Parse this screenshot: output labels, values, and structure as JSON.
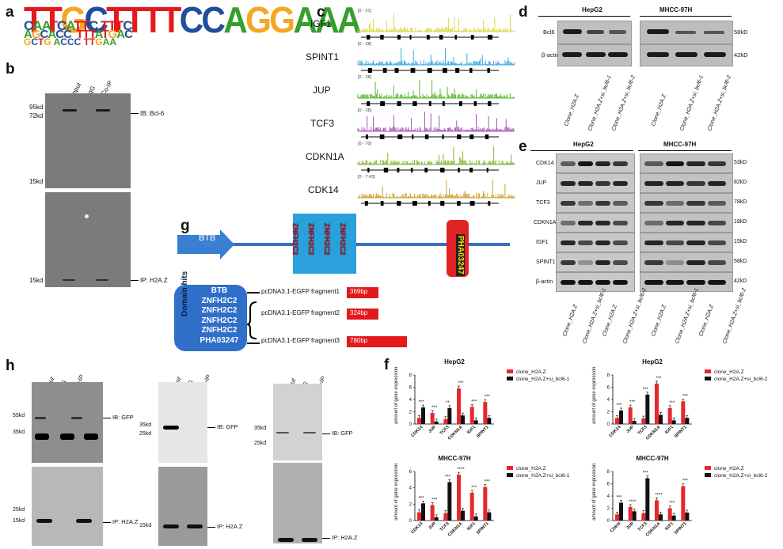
{
  "panels": {
    "a": "a",
    "b": "b",
    "c": "c",
    "d": "d",
    "e": "e",
    "f": "f",
    "g": "g",
    "h": "h"
  },
  "motif": {
    "top": "TTGCTTTTCCAGGAAA",
    "row2": "CAATCATTC TTTC",
    "row3": "AGCACC  TTTATGAC",
    "row4": "GCTG ACCC TTGAA",
    "colors": {
      "T": "#e31a1c",
      "C": "#1f4e9c",
      "A": "#33a02c",
      "G": "#f5a623"
    }
  },
  "panel_b": {
    "lanes": [
      "input",
      "IgG",
      "Co-IP"
    ],
    "markers_top": [
      "95kd",
      "72kd",
      "15kd"
    ],
    "markers_bottom": [
      "15kd"
    ],
    "ib_label": "IB: Bcl-6",
    "ip_label": "IP: H2A.Z"
  },
  "panel_c": {
    "tracks": [
      {
        "gene": "IGF1",
        "range": "[0 - 21]",
        "color": "#d9d94a"
      },
      {
        "gene": "SPINT1",
        "range": "[0 - 28]",
        "color": "#3fa9e0"
      },
      {
        "gene": "JUP",
        "range": "[0 - 28]",
        "color": "#5cb83a"
      },
      {
        "gene": "TCF3",
        "range": "[0 - 28]",
        "color": "#a259b5"
      },
      {
        "gene": "CDKN1A",
        "range": "[0 - 70]",
        "color": "#8cb43a"
      },
      {
        "gene": "CDK14",
        "range": "[0 - 7.43]",
        "color": "#c9a227"
      }
    ]
  },
  "panel_d": {
    "cell_lines": [
      "HepG2",
      "MHCC-97H"
    ],
    "rows": [
      "Bcl6",
      "β-actin"
    ],
    "sizes": [
      "58kD",
      "42kD"
    ],
    "lanes": [
      "Clone_H2A.Z",
      "Clone_H2A.Z+si_bcl6-1",
      "Clone_H2A.Z+si_bcl6-2"
    ]
  },
  "panel_e": {
    "cell_lines": [
      "HepG2",
      "MHCC-97H"
    ],
    "rows": [
      "CDK14",
      "JUP",
      "TCF3",
      "CDKN1A",
      "IGF1",
      "SPINT1",
      "β-actin"
    ],
    "sizes": [
      "53kD",
      "82kD",
      "78kD",
      "18kD",
      "15kD",
      "58kD",
      "42kD"
    ],
    "lanes": [
      "Clone_H2A.Z",
      "Clone_H2A.Z+si_bcl6-1",
      "Clone_H2A.Z",
      "Clone_H2A.Z+si_bcl6-2"
    ]
  },
  "panel_g": {
    "btb": "BTB",
    "znf": [
      "ZNFH2C2",
      "ZNFH2C2",
      "ZNFH2C2",
      "ZNFH2C2"
    ],
    "pha": "PHA03247",
    "domain_box_title": "Domain hits",
    "domain_items": [
      "BTB",
      "ZNFH2C2",
      "ZNFH2C2",
      "ZNFH2C2",
      "ZNFH2C2",
      "PHA03247"
    ],
    "fragments": [
      {
        "name": "pcDNA3.1-EGFP fragment1",
        "size": "369bp"
      },
      {
        "name": "pcDNA3.1-EGFP fragment2",
        "size": "324bp"
      },
      {
        "name": "pcDNA3.1-EGFP fragment3",
        "size": "780bp"
      }
    ]
  },
  "panel_h": {
    "lanes": [
      "input",
      "IgG",
      "Co-IP"
    ],
    "m1": [
      "55kd",
      "35kd",
      "25kd",
      "15kd"
    ],
    "m2": [
      "35kd",
      "25kd",
      "15kd"
    ],
    "m3": [
      "35kd",
      "25kd"
    ],
    "ib": "IB: GFP",
    "ip": "IP: H2A.Z"
  },
  "chart_data": [
    {
      "type": "bar",
      "title": "HepG2",
      "ylabel": "amount of gene expression",
      "categories": [
        "CDK14",
        "JUP",
        "TCF3",
        "CDKN1A",
        "IGF1",
        "SPINT1"
      ],
      "ylim": [
        0,
        8
      ],
      "yticks": [
        "0",
        "2",
        "4",
        "6",
        "8"
      ],
      "series": [
        {
          "name": "clone_H2A.Z",
          "values": [
            1.0,
            1.8,
            0.8,
            5.8,
            2.8,
            3.6
          ],
          "color": "#e8272c"
        },
        {
          "name": "clone_H2A.Z+si_bcl6-1",
          "values": [
            2.7,
            0.4,
            2.6,
            1.4,
            0.6,
            1.0
          ],
          "color": "#111111"
        }
      ],
      "annotations": [
        "***",
        "***",
        "**",
        "***",
        "***",
        "***"
      ]
    },
    {
      "type": "bar",
      "title": "HepG2",
      "ylabel": "amount of gene expression",
      "categories": [
        "CDK14",
        "JUP",
        "TCF3",
        "CDKN1A",
        "IGF1",
        "SPINT1"
      ],
      "ylim": [
        0,
        8
      ],
      "yticks": [
        "0",
        "2",
        "4",
        "6",
        "8"
      ],
      "series": [
        {
          "name": "clone_H2A.Z",
          "values": [
            1.0,
            2.7,
            0.9,
            6.6,
            2.6,
            3.7
          ],
          "color": "#e8272c"
        },
        {
          "name": "clone_H2A.Z+si_bcl6-2",
          "values": [
            2.2,
            0.5,
            4.8,
            1.5,
            0.6,
            1.0
          ],
          "color": "#111111"
        }
      ],
      "annotations": [
        "***",
        "***",
        "***",
        "***",
        "***",
        "***"
      ]
    },
    {
      "type": "bar",
      "title": "MHCC-97H",
      "ylabel": "amount of gene expression",
      "categories": [
        "CDK14",
        "JUP",
        "TCF3",
        "CDKN1A",
        "IGF1",
        "SPINT1"
      ],
      "ylim": [
        0,
        6
      ],
      "yticks": [
        "0",
        "2",
        "4",
        "6"
      ],
      "series": [
        {
          "name": "clone_H2A.Z",
          "values": [
            1.0,
            1.9,
            0.9,
            5.6,
            3.4,
            4.1
          ],
          "color": "#e8272c"
        },
        {
          "name": "clone_H2A.Z+si_bcl6-1",
          "values": [
            2.1,
            0.4,
            4.7,
            1.2,
            0.5,
            1.0
          ],
          "color": "#111111"
        }
      ],
      "annotations": [
        "***",
        "***",
        "***",
        "****",
        "***",
        "***"
      ]
    },
    {
      "type": "bar",
      "title": "MHCC-97H",
      "ylabel": "amount of gene expression",
      "categories": [
        "CDKN",
        "JUP",
        "TCF3",
        "CDKN1A",
        "IGF1",
        "SPINT1"
      ],
      "ylim": [
        0,
        8
      ],
      "yticks": [
        "0",
        "2",
        "4",
        "6",
        "8"
      ],
      "series": [
        {
          "name": "clone_H2A.Z",
          "values": [
            1.0,
            2.2,
            1.2,
            3.3,
            2.0,
            5.6
          ],
          "color": "#e8272c"
        },
        {
          "name": "clone_H2A.Z+si_bcl6-2",
          "values": [
            2.9,
            1.5,
            6.9,
            1.0,
            0.8,
            1.3
          ],
          "color": "#111111"
        }
      ],
      "annotations": [
        "***",
        "****",
        "***",
        "****",
        "***",
        "***"
      ]
    }
  ]
}
